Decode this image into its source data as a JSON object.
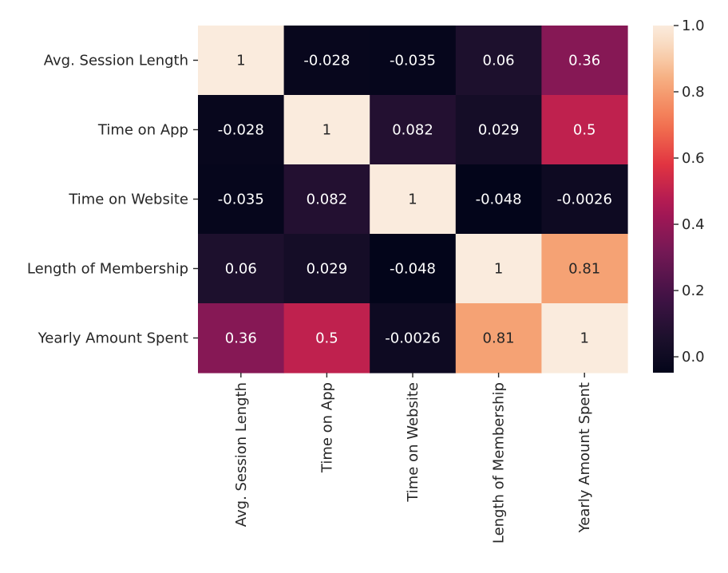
{
  "chart_data": {
    "type": "heatmap",
    "title": "",
    "xlabel": "",
    "ylabel": "",
    "row_labels": [
      "Avg. Session Length",
      "Time on App",
      "Time on Website",
      "Length of Membership",
      "Yearly Amount Spent"
    ],
    "col_labels": [
      "Avg. Session Length",
      "Time on App",
      "Time on Website",
      "Length of Membership",
      "Yearly Amount Spent"
    ],
    "values": [
      [
        1,
        -0.028,
        -0.035,
        0.06,
        0.36
      ],
      [
        -0.028,
        1,
        0.082,
        0.029,
        0.5
      ],
      [
        -0.035,
        0.082,
        1,
        -0.048,
        -0.0026
      ],
      [
        0.06,
        0.029,
        -0.048,
        1,
        0.81
      ],
      [
        0.36,
        0.5,
        -0.0026,
        0.81,
        1
      ]
    ],
    "value_labels": [
      [
        "1",
        "-0.028",
        "-0.035",
        "0.06",
        "0.36"
      ],
      [
        "-0.028",
        "1",
        "0.082",
        "0.029",
        "0.5"
      ],
      [
        "-0.035",
        "0.082",
        "1",
        "-0.048",
        "-0.0026"
      ],
      [
        "0.06",
        "0.029",
        "-0.048",
        "1",
        "0.81"
      ],
      [
        "0.36",
        "0.5",
        "-0.0026",
        "0.81",
        "1"
      ]
    ],
    "colorscale": "rocket",
    "vmin": -0.048,
    "vmax": 1,
    "colorbar_ticks": [
      0.0,
      0.2,
      0.4,
      0.6,
      0.8,
      1.0
    ],
    "colorbar_tick_labels": [
      "0.0",
      "0.2",
      "0.4",
      "0.6",
      "0.8",
      "1.0"
    ],
    "colorbar_placement": "right",
    "grid": false
  }
}
